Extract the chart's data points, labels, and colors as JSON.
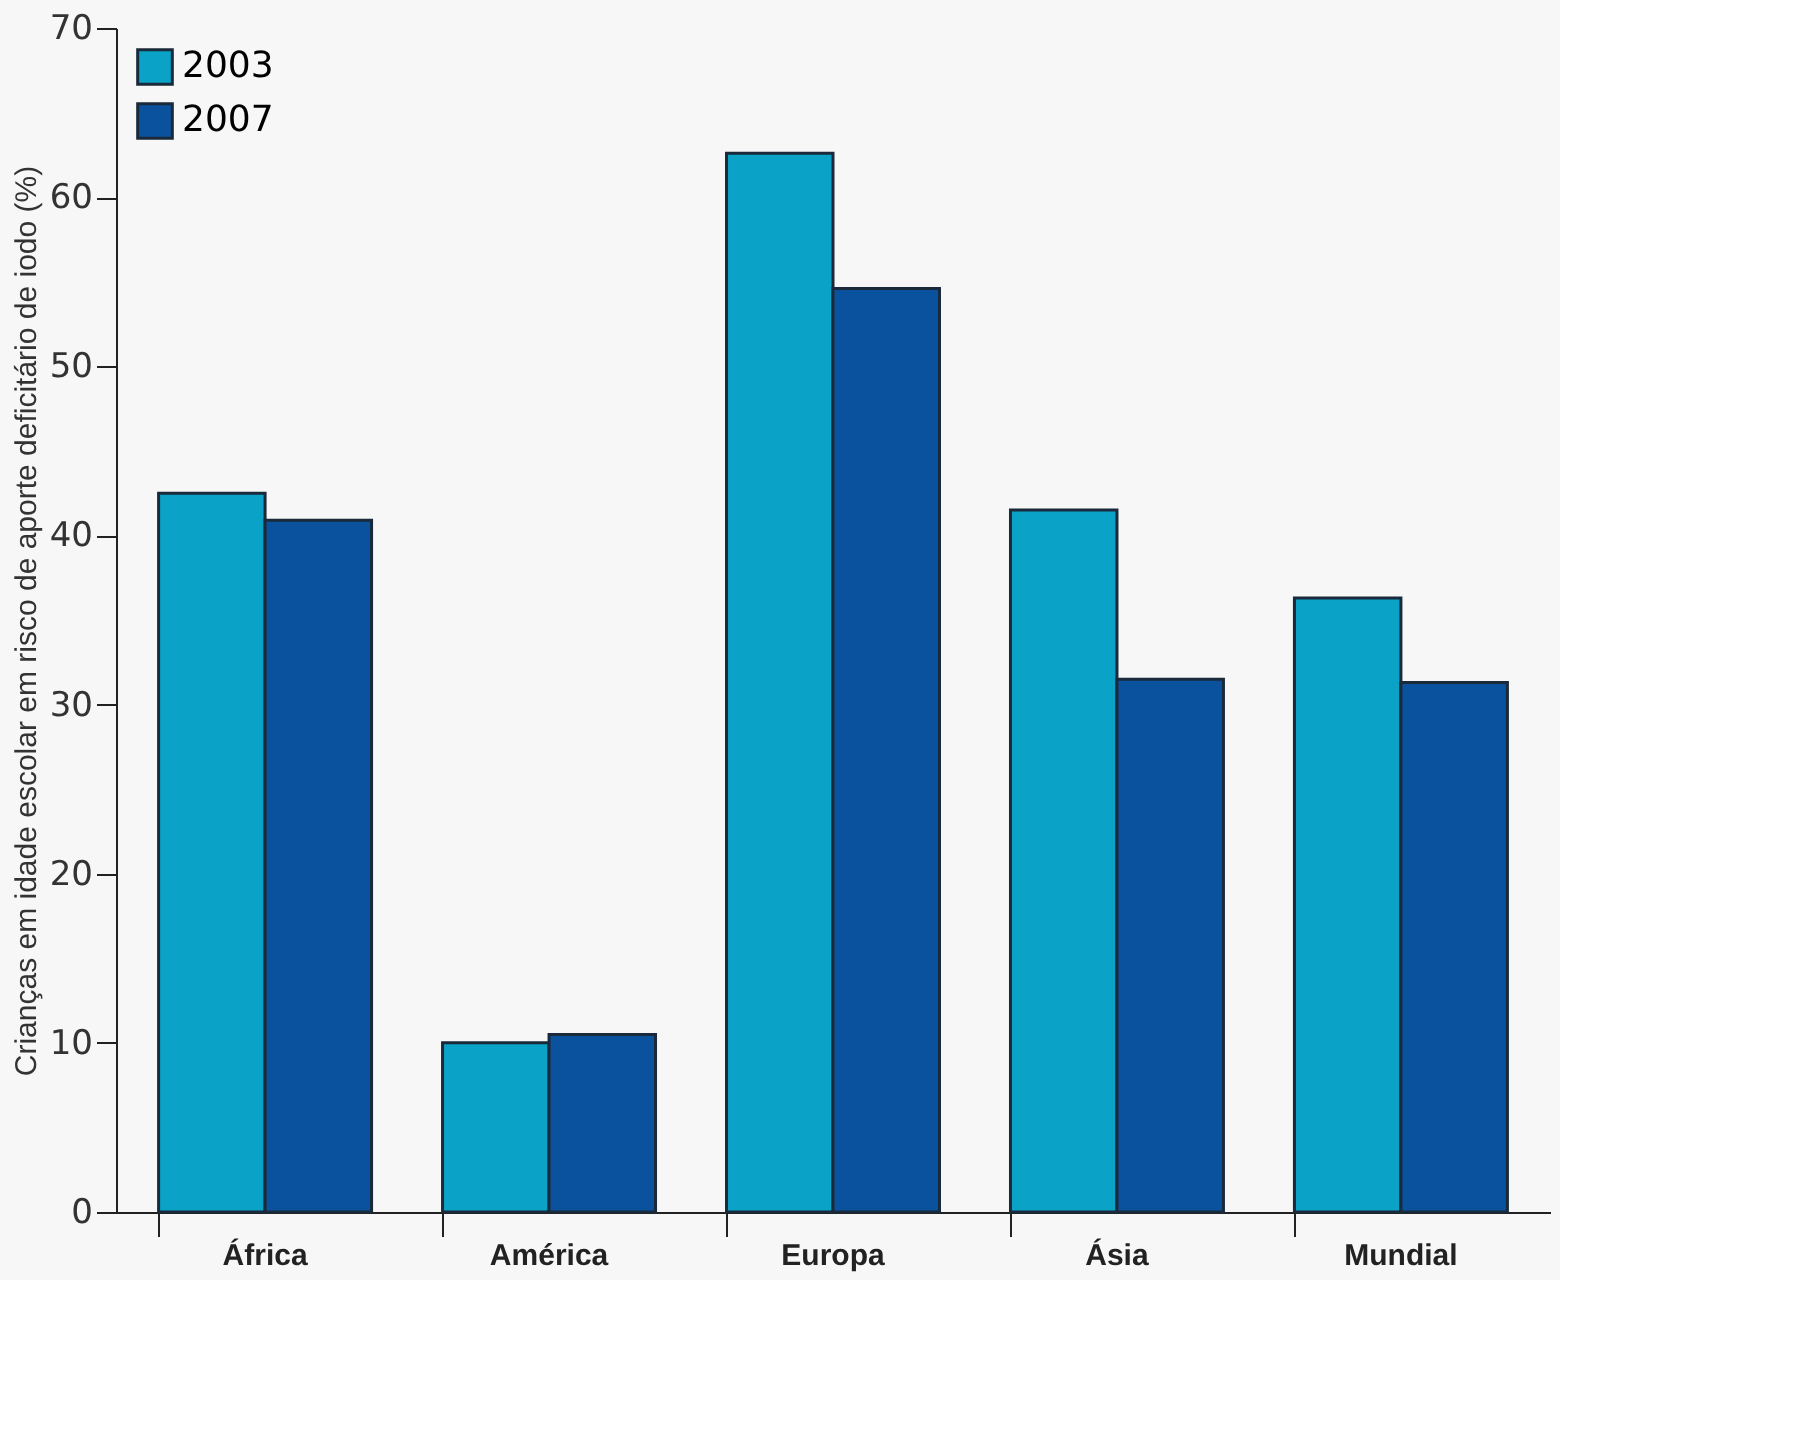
{
  "chart_data": {
    "type": "bar",
    "ylabel": "Crianças em idade escolar em risco de aporte deficitário de iodo (%)",
    "categories": [
      "África",
      "América",
      "Europa",
      "Ásia",
      "Mundial"
    ],
    "series": [
      {
        "name": "2003",
        "color": "#0aa2c6",
        "values": [
          42.5,
          10.0,
          62.6,
          41.5,
          36.3
        ]
      },
      {
        "name": "2007",
        "color": "#0a529e",
        "values": [
          40.9,
          10.5,
          54.6,
          31.5,
          31.3
        ]
      }
    ],
    "ylim": [
      0,
      70
    ],
    "yticks": [
      0,
      10,
      20,
      30,
      40,
      50,
      60,
      70
    ],
    "grid": false,
    "legend": "top left"
  }
}
